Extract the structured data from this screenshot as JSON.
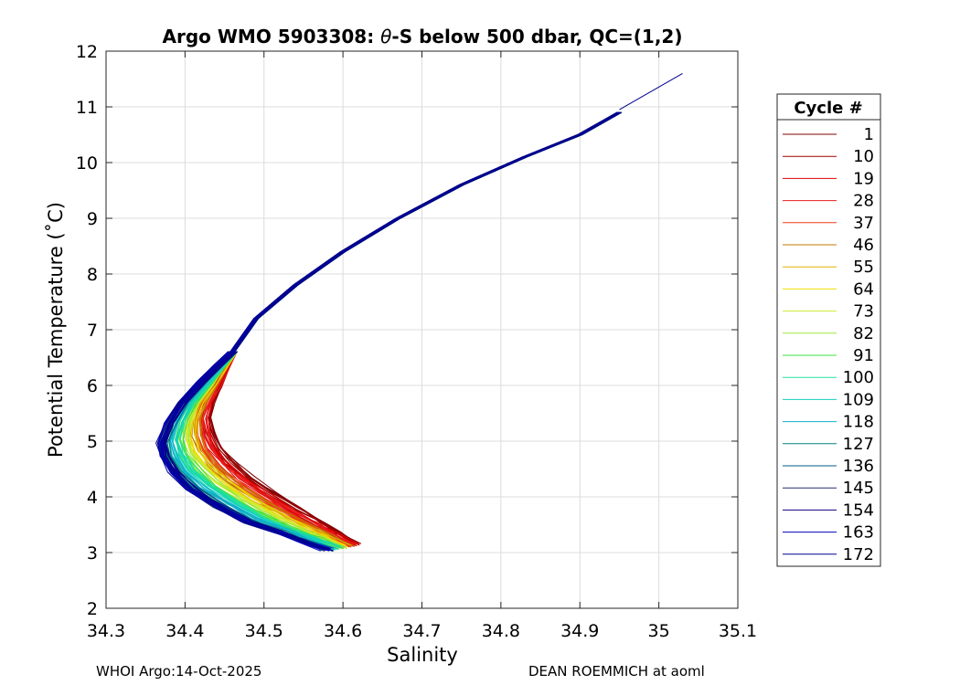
{
  "chart_data": {
    "type": "line",
    "title_prefix": "Argo WMO 5903308: ",
    "title_theta": "θ",
    "title_suffix": "-S below 500 dbar,  QC=(1,2)",
    "xlabel": "Salinity",
    "ylabel": "Potential Temperature (˚C)",
    "xlim": [
      34.3,
      35.1
    ],
    "ylim": [
      2,
      12
    ],
    "xticks": [
      34.3,
      34.4,
      34.5,
      34.6,
      34.7,
      34.8,
      34.9,
      35,
      35.1
    ],
    "xtick_labels": [
      "34.3",
      "34.4",
      "34.5",
      "34.6",
      "34.7",
      "34.8",
      "34.9",
      "35",
      "35.1"
    ],
    "yticks": [
      2,
      3,
      4,
      5,
      6,
      7,
      8,
      9,
      10,
      11,
      12
    ],
    "ytick_labels": [
      "2",
      "3",
      "4",
      "5",
      "6",
      "7",
      "8",
      "9",
      "10",
      "11",
      "12"
    ],
    "grid": true,
    "legend": {
      "title": "Cycle #",
      "placement": "right-outside",
      "entries": [
        {
          "label": "1",
          "color": "#800000"
        },
        {
          "label": "10",
          "color": "#a00000"
        },
        {
          "label": "19",
          "color": "#e00000"
        },
        {
          "label": "28",
          "color": "#e81c1c"
        },
        {
          "label": "37",
          "color": "#f03a14"
        },
        {
          "label": "46",
          "color": "#c07a00"
        },
        {
          "label": "55",
          "color": "#e0b000"
        },
        {
          "label": "64",
          "color": "#f0e000"
        },
        {
          "label": "73",
          "color": "#d0ea30"
        },
        {
          "label": "82",
          "color": "#9ee840"
        },
        {
          "label": "91",
          "color": "#40e040"
        },
        {
          "label": "100",
          "color": "#20e0a0"
        },
        {
          "label": "109",
          "color": "#10d0c0"
        },
        {
          "label": "118",
          "color": "#10b0c8"
        },
        {
          "label": "127",
          "color": "#008080"
        },
        {
          "label": "136",
          "color": "#005f88"
        },
        {
          "label": "145",
          "color": "#203070"
        },
        {
          "label": "154",
          "color": "#100080"
        },
        {
          "label": "163",
          "color": "#0000c0"
        },
        {
          "label": "172",
          "color": "#000090"
        }
      ]
    },
    "profile_shape": {
      "upper_branch": [
        [
          34.46,
          6.6
        ],
        [
          34.49,
          7.2
        ],
        [
          34.54,
          7.8
        ],
        [
          34.6,
          8.4
        ],
        [
          34.67,
          9.0
        ],
        [
          34.75,
          9.6
        ],
        [
          34.83,
          10.1
        ],
        [
          34.9,
          10.5
        ],
        [
          34.95,
          10.9
        ]
      ],
      "extension_segment": [
        [
          34.95,
          10.95
        ],
        [
          35.03,
          11.6
        ]
      ],
      "early_cycles_lower": [
        [
          34.46,
          6.6
        ],
        [
          34.445,
          6.0
        ],
        [
          34.43,
          5.5
        ],
        [
          34.44,
          5.0
        ],
        [
          34.47,
          4.5
        ],
        [
          34.52,
          4.0
        ],
        [
          34.58,
          3.5
        ],
        [
          34.62,
          3.15
        ]
      ],
      "late_cycles_lower": [
        [
          34.46,
          6.6
        ],
        [
          34.43,
          6.2
        ],
        [
          34.39,
          5.6
        ],
        [
          34.37,
          5.0
        ],
        [
          34.375,
          4.6
        ],
        [
          34.41,
          4.1
        ],
        [
          34.47,
          3.6
        ],
        [
          34.53,
          3.3
        ],
        [
          34.58,
          3.05
        ]
      ]
    }
  },
  "footer": {
    "left": "WHOI Argo:14-Oct-2025",
    "right": "DEAN ROEMMICH at aoml"
  }
}
